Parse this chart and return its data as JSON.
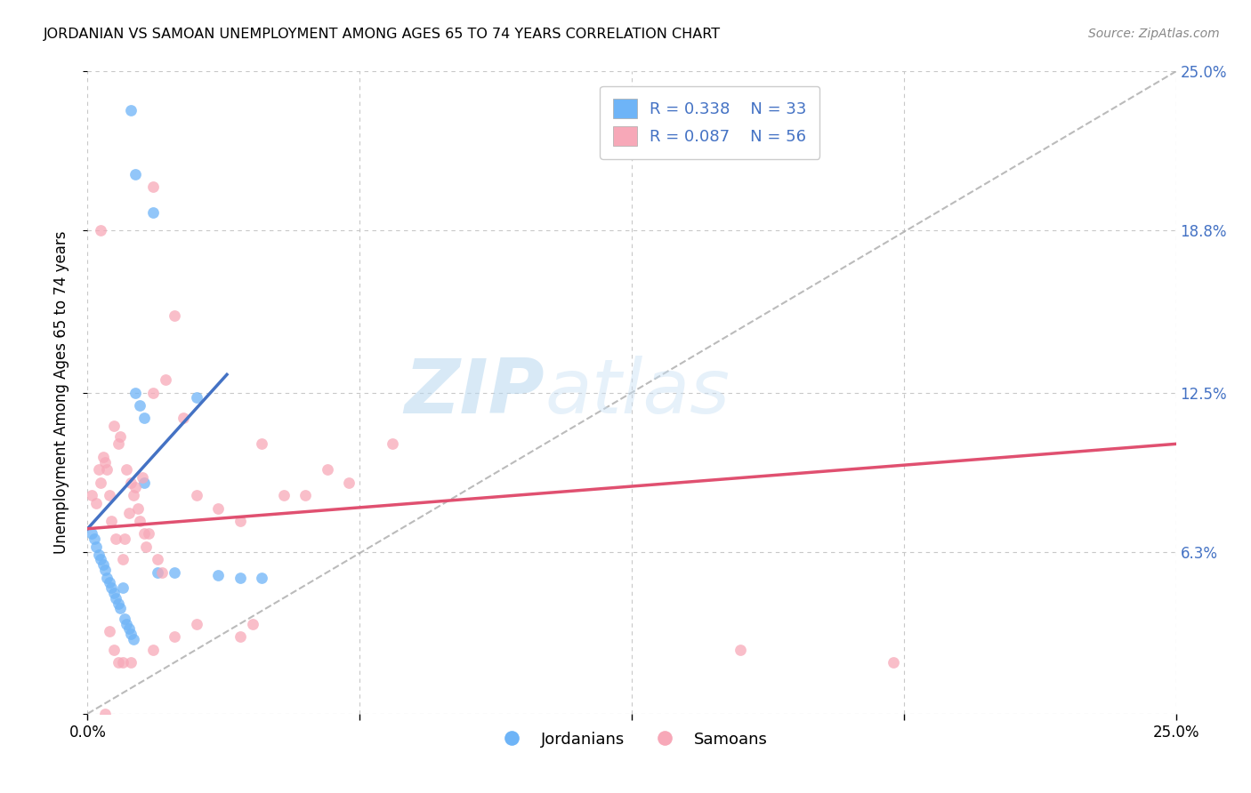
{
  "title": "JORDANIAN VS SAMOAN UNEMPLOYMENT AMONG AGES 65 TO 74 YEARS CORRELATION CHART",
  "source": "Source: ZipAtlas.com",
  "ylabel": "Unemployment Among Ages 65 to 74 years",
  "xmin": 0.0,
  "xmax": 25.0,
  "ymin": 0.0,
  "ymax": 25.0,
  "ytick_vals": [
    0.0,
    6.3,
    12.5,
    18.8,
    25.0
  ],
  "ytick_labels": [
    "",
    "6.3%",
    "12.5%",
    "18.8%",
    "25.0%"
  ],
  "xtick_vals": [
    0.0,
    6.25,
    12.5,
    18.75,
    25.0
  ],
  "xtick_labels": [
    "0.0%",
    "",
    "",
    "",
    "25.0%"
  ],
  "legend_r1": "R = 0.338",
  "legend_n1": "N = 33",
  "legend_r2": "R = 0.087",
  "legend_n2": "N = 56",
  "jordanian_color": "#6eb4f7",
  "samoan_color": "#f7a8b8",
  "trend_jordan_color": "#4472c4",
  "trend_samoan_color": "#e05070",
  "watermark": "ZIPatlas",
  "background_color": "#ffffff",
  "grid_color": "#c8c8c8",
  "jordan_x": [
    0.1,
    0.15,
    0.2,
    0.25,
    0.3,
    0.35,
    0.4,
    0.45,
    0.5,
    0.55,
    0.6,
    0.65,
    0.7,
    0.75,
    0.8,
    0.85,
    0.9,
    0.95,
    1.0,
    1.05,
    1.1,
    1.2,
    1.3,
    1.5,
    1.6,
    2.0,
    2.5,
    3.0,
    3.5,
    4.0,
    1.0,
    1.1,
    1.3
  ],
  "jordan_y": [
    7.0,
    6.8,
    6.5,
    6.2,
    6.0,
    5.8,
    5.6,
    5.3,
    5.1,
    4.9,
    4.7,
    4.5,
    4.3,
    4.1,
    4.9,
    3.7,
    3.5,
    3.3,
    3.1,
    2.9,
    12.5,
    12.0,
    11.5,
    19.5,
    5.5,
    5.5,
    12.3,
    5.4,
    5.3,
    5.3,
    23.5,
    21.0,
    9.0
  ],
  "samoan_x": [
    0.1,
    0.2,
    0.25,
    0.3,
    0.35,
    0.4,
    0.45,
    0.5,
    0.5,
    0.55,
    0.6,
    0.65,
    0.7,
    0.75,
    0.8,
    0.85,
    0.9,
    0.95,
    1.0,
    1.05,
    1.1,
    1.15,
    1.2,
    1.25,
    1.3,
    1.35,
    1.4,
    1.5,
    1.6,
    1.7,
    1.8,
    2.0,
    2.2,
    2.5,
    3.0,
    3.5,
    3.8,
    4.0,
    4.5,
    5.0,
    5.5,
    6.0,
    7.0,
    3.5,
    2.5,
    2.0,
    1.5,
    15.0,
    18.5,
    0.6,
    0.8,
    1.0,
    1.5,
    0.7,
    0.3,
    0.4
  ],
  "samoan_y": [
    8.5,
    8.2,
    9.5,
    9.0,
    10.0,
    9.8,
    9.5,
    8.5,
    3.2,
    7.5,
    11.2,
    6.8,
    10.5,
    10.8,
    6.0,
    6.8,
    9.5,
    7.8,
    9.0,
    8.5,
    8.8,
    8.0,
    7.5,
    9.2,
    7.0,
    6.5,
    7.0,
    12.5,
    6.0,
    5.5,
    13.0,
    15.5,
    11.5,
    8.5,
    8.0,
    7.5,
    3.5,
    10.5,
    8.5,
    8.5,
    9.5,
    9.0,
    10.5,
    3.0,
    3.5,
    3.0,
    20.5,
    2.5,
    2.0,
    2.5,
    2.0,
    2.0,
    2.5,
    2.0,
    18.8,
    0.0
  ],
  "jordan_trend_x": [
    0.0,
    3.2
  ],
  "jordan_trend_y": [
    7.2,
    13.2
  ],
  "samoan_trend_x": [
    0.0,
    25.0
  ],
  "samoan_trend_y": [
    7.2,
    10.5
  ]
}
